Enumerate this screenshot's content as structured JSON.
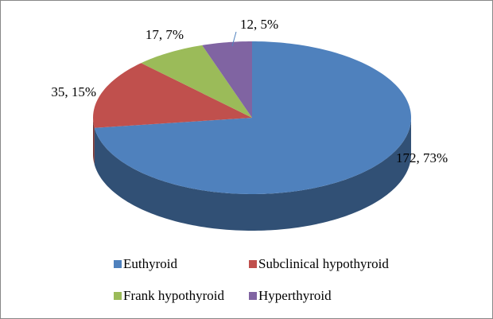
{
  "chart_data": {
    "type": "pie",
    "categories": [
      "Euthyroid",
      "Subclinical hypothyroid",
      "Frank hypothyroid",
      "Hyperthyroid"
    ],
    "values": [
      172,
      35,
      17,
      12
    ],
    "value_labels": [
      "172, 73%",
      "35, 15%",
      "17, 7%",
      "12, 5%"
    ],
    "colors": [
      "#4f81bd",
      "#c0504d",
      "#9bbb59",
      "#8064a2"
    ],
    "legend": "bottom"
  }
}
